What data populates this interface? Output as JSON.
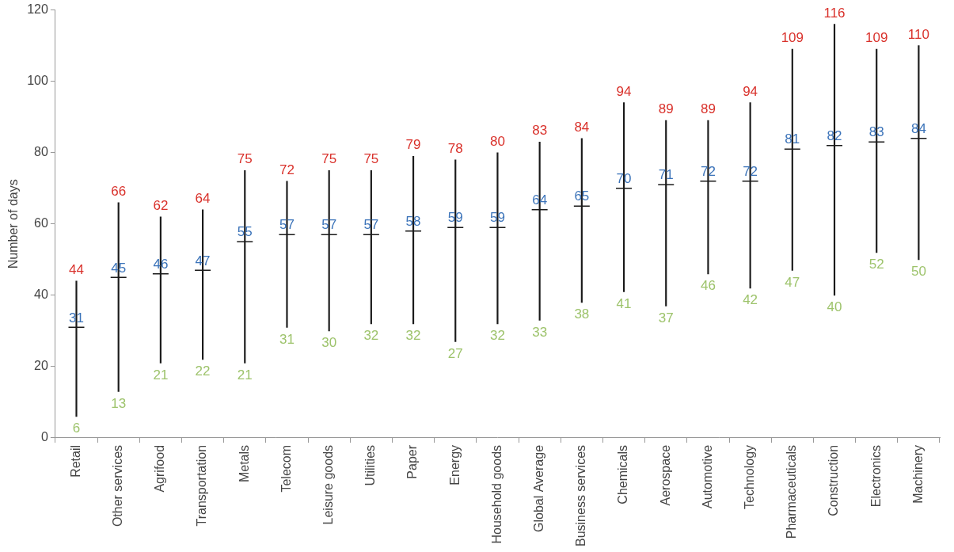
{
  "chart_data": {
    "type": "range",
    "ylabel": "Number of days",
    "categories": [
      "Retail",
      "Other services",
      "Agrifood",
      "Transportation",
      "Metals",
      "Telecom",
      "Leisure goods",
      "Utilities",
      "Paper",
      "Energy",
      "Household goods",
      "Global Average",
      "Business services",
      "Chemicals",
      "Aerospace",
      "Automotive",
      "Technology",
      "Pharmaceuticals",
      "Construction",
      "Electronics",
      "Machinery"
    ],
    "series": [
      {
        "color": "#d9312b",
        "marker": "none",
        "values": [
          44,
          66,
          62,
          64,
          75,
          72,
          75,
          75,
          79,
          78,
          80,
          83,
          84,
          94,
          89,
          89,
          94,
          109,
          116,
          109,
          110
        ]
      },
      {
        "color": "#3b73b9",
        "marker": "dash",
        "values": [
          31,
          45,
          46,
          47,
          55,
          57,
          57,
          57,
          58,
          59,
          59,
          64,
          65,
          70,
          71,
          72,
          72,
          81,
          82,
          83,
          84
        ]
      },
      {
        "color": "#9dc36b",
        "marker": "none",
        "values": [
          6,
          13,
          21,
          22,
          21,
          31,
          30,
          32,
          32,
          27,
          32,
          33,
          38,
          41,
          37,
          46,
          42,
          47,
          40,
          52,
          50
        ]
      }
    ],
    "color": "#1a1a1a",
    "ylim": [
      0,
      120
    ],
    "yticks": [
      0,
      20,
      40,
      60,
      80,
      100,
      120
    ],
    "grid": false,
    "data_labels": true
  }
}
